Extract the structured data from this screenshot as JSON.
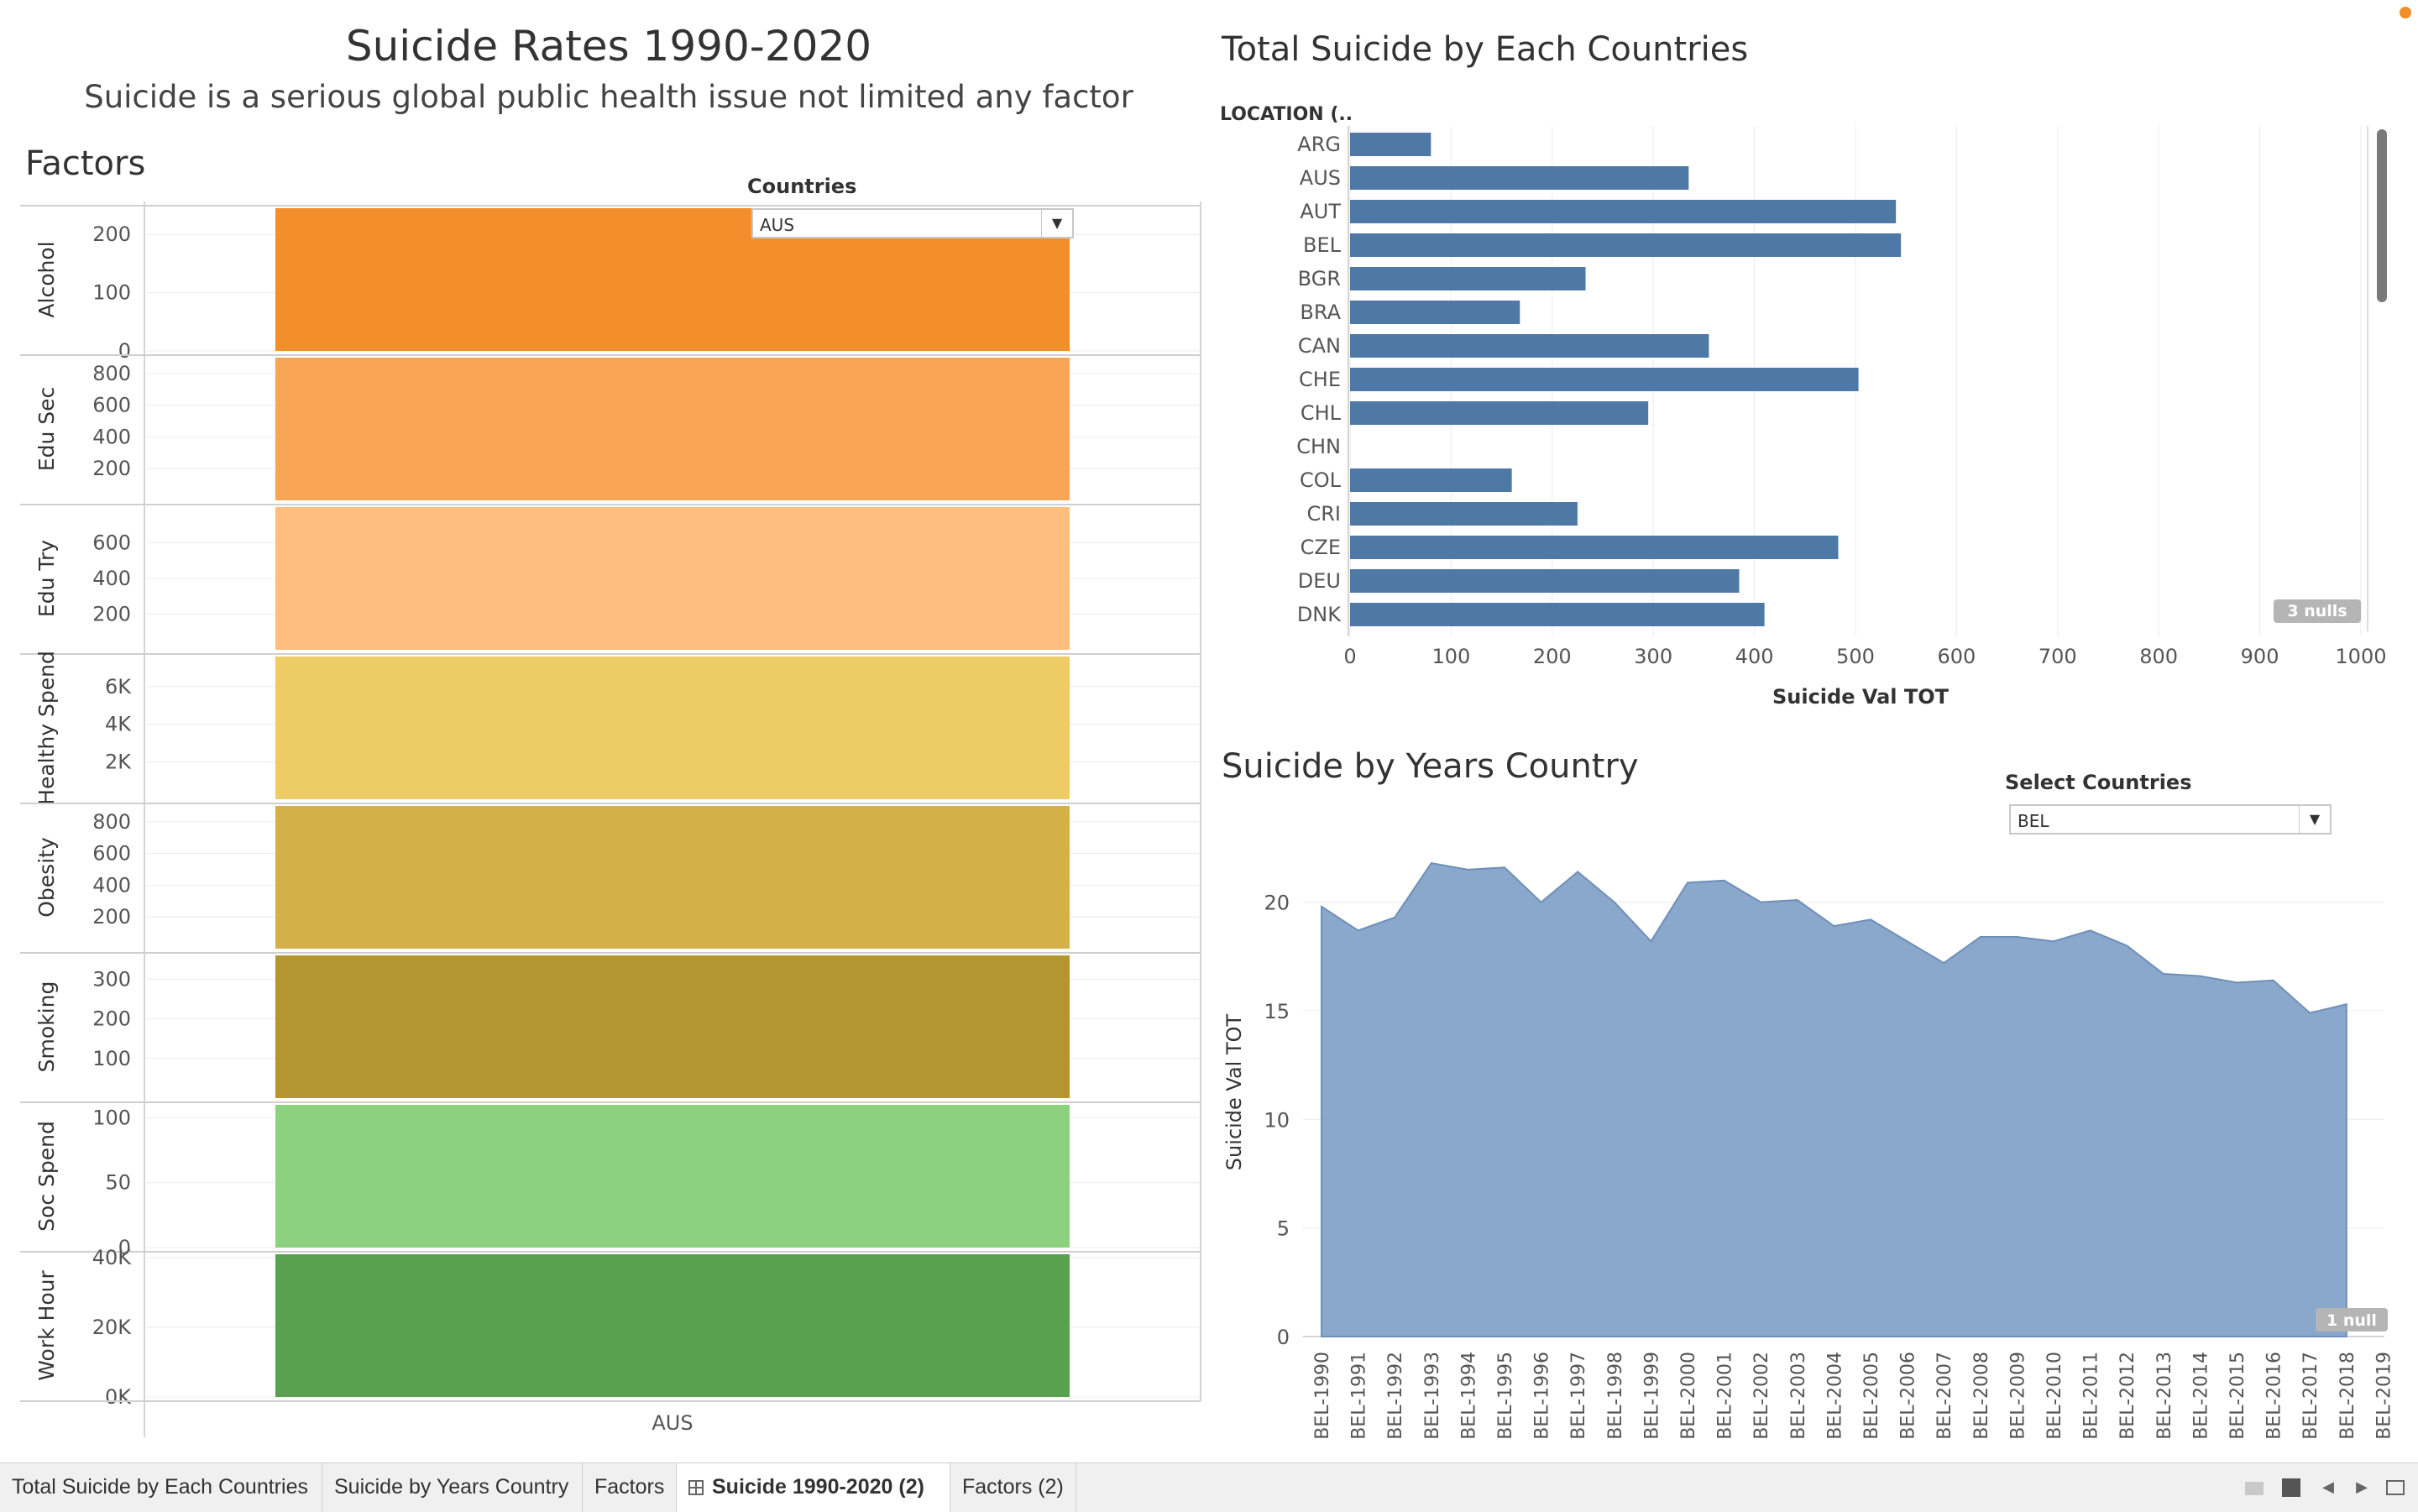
{
  "dashboard": {
    "title": "Suicide Rates 1990-2020",
    "subtitle": "Suicide is a serious global public health issue not limited any factor"
  },
  "factors": {
    "title": "Factors",
    "filter_label": "Countries",
    "filter_value": "AUS"
  },
  "totals": {
    "title": "Total Suicide by Each Countries",
    "dimension_label": "LOCATION (..",
    "nulls_badge": "3 nulls"
  },
  "years": {
    "title": "Suicide by Years Country",
    "filter_label": "Select Countries",
    "filter_value": "BEL",
    "nulls_badge": "1 null"
  },
  "tabs": [
    {
      "label": "Total Suicide by Each Countries",
      "active": false
    },
    {
      "label": "Suicide by Years Country",
      "active": false
    },
    {
      "label": "Factors",
      "active": false
    },
    {
      "label": "Suicide 1990-2020 (2)",
      "active": true
    },
    {
      "label": "Factors (2)",
      "active": false
    }
  ],
  "chart_data": [
    {
      "type": "bar",
      "title": "Factors",
      "categories": [
        "AUS"
      ],
      "xlabel": "",
      "panels": [
        {
          "name": "Alcohol",
          "value": 245,
          "ylim": [
            0,
            245
          ],
          "ticks": [
            0,
            100,
            200
          ],
          "tick_labels": [
            "0",
            "100",
            "200"
          ],
          "color": "#f28e2b"
        },
        {
          "name": "Edu Sec",
          "value": 900,
          "ylim": [
            0,
            900
          ],
          "ticks": [
            200,
            400,
            600,
            800
          ],
          "tick_labels": [
            "200",
            "400",
            "600",
            "800"
          ],
          "color": "#f8a656"
        },
        {
          "name": "Edu Try",
          "value": 800,
          "ylim": [
            0,
            800
          ],
          "ticks": [
            200,
            400,
            600
          ],
          "tick_labels": [
            "200",
            "400",
            "600"
          ],
          "color": "#ffbe7d"
        },
        {
          "name": "Healthy Spend",
          "value": 7600,
          "ylim": [
            0,
            7600
          ],
          "ticks": [
            2000,
            4000,
            6000
          ],
          "tick_labels": [
            "2K",
            "4K",
            "6K"
          ],
          "color": "#eecc65"
        },
        {
          "name": "Obesity",
          "value": 900,
          "ylim": [
            0,
            900
          ],
          "ticks": [
            200,
            400,
            600,
            800
          ],
          "tick_labels": [
            "200",
            "400",
            "600",
            "800"
          ],
          "color": "#d4b148"
        },
        {
          "name": "Smoking",
          "value": 360,
          "ylim": [
            0,
            360
          ],
          "ticks": [
            100,
            200,
            300
          ],
          "tick_labels": [
            "100",
            "200",
            "300"
          ],
          "color": "#b49630"
        },
        {
          "name": "Soc Spend",
          "value": 110,
          "ylim": [
            0,
            110
          ],
          "ticks": [
            0,
            50,
            100
          ],
          "tick_labels": [
            "0",
            "50",
            "100"
          ],
          "color": "#8cd17d"
        },
        {
          "name": "Work Hour",
          "value": 41000,
          "ylim": [
            0,
            41000
          ],
          "ticks": [
            0,
            20000,
            40000
          ],
          "tick_labels": [
            "0K",
            "20K",
            "40K"
          ],
          "color": "#59a14f"
        }
      ]
    },
    {
      "type": "bar",
      "orientation": "horizontal",
      "title": "Total Suicide by Each Countries",
      "ylabel": "LOCATION (..",
      "xlabel": "Suicide Val TOT",
      "categories": [
        "ARG",
        "AUS",
        "AUT",
        "BEL",
        "BGR",
        "BRA",
        "CAN",
        "CHE",
        "CHL",
        "CHN",
        "COL",
        "CRI",
        "CZE",
        "DEU",
        "DNK"
      ],
      "values": [
        80,
        335,
        540,
        545,
        233,
        168,
        355,
        503,
        295,
        null,
        160,
        225,
        483,
        385,
        410
      ],
      "xlim": [
        0,
        1010
      ],
      "xticks": [
        0,
        100,
        200,
        300,
        400,
        500,
        600,
        700,
        800,
        900,
        1000
      ],
      "grid": true,
      "color": "#4e79a7"
    },
    {
      "type": "area",
      "title": "Suicide by Years Country",
      "xlabel": "",
      "ylabel": "Suicide Val TOT",
      "x": [
        "BEL-1990",
        "BEL-1991",
        "BEL-1992",
        "BEL-1993",
        "BEL-1994",
        "BEL-1995",
        "BEL-1996",
        "BEL-1997",
        "BEL-1998",
        "BEL-1999",
        "BEL-2000",
        "BEL-2001",
        "BEL-2002",
        "BEL-2003",
        "BEL-2004",
        "BEL-2005",
        "BEL-2006",
        "BEL-2007",
        "BEL-2008",
        "BEL-2009",
        "BEL-2010",
        "BEL-2011",
        "BEL-2012",
        "BEL-2013",
        "BEL-2014",
        "BEL-2015",
        "BEL-2016",
        "BEL-2017",
        "BEL-2018",
        "BEL-2019"
      ],
      "values": [
        19.8,
        18.7,
        19.3,
        21.8,
        21.5,
        21.6,
        20.0,
        21.4,
        20.0,
        18.2,
        20.9,
        21.0,
        20.0,
        20.1,
        18.9,
        19.2,
        18.2,
        17.2,
        18.4,
        18.4,
        18.2,
        18.7,
        18.0,
        16.7,
        16.6,
        16.3,
        16.4,
        14.9,
        15.3,
        null
      ],
      "ylim": [
        0,
        22.5
      ],
      "yticks": [
        0,
        5,
        10,
        15,
        20
      ],
      "grid": true,
      "color": "#8aa8cc"
    }
  ]
}
